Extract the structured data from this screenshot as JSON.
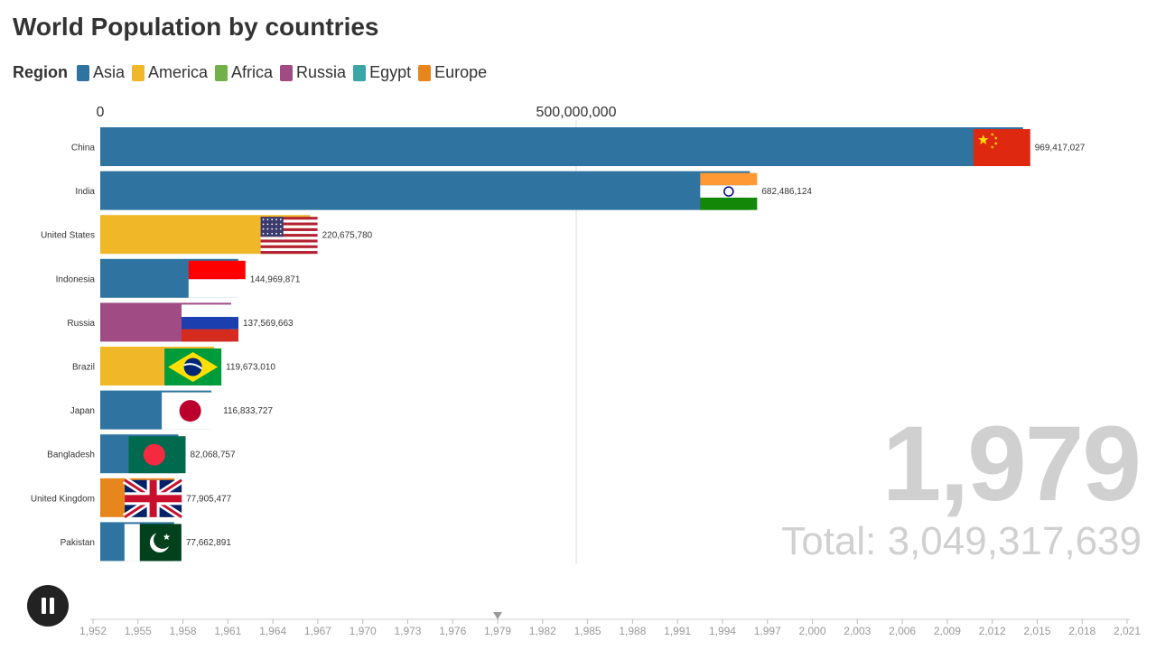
{
  "title": "World Population by countries",
  "legend": {
    "title": "Region",
    "items": [
      {
        "label": "Asia",
        "color": "#2f74a0"
      },
      {
        "label": "America",
        "color": "#f0b829"
      },
      {
        "label": "Africa",
        "color": "#71b148"
      },
      {
        "label": "Russia",
        "color": "#a14b84"
      },
      {
        "label": "Egypt",
        "color": "#3aa5a5"
      },
      {
        "label": "Europe",
        "color": "#e8861e"
      }
    ]
  },
  "overlay": {
    "year": "1,979",
    "total": "Total: 3,049,317,639"
  },
  "chart_data": {
    "type": "bar",
    "orientation": "horizontal",
    "xlim": [
      0,
      1000000000
    ],
    "x_ticks": [
      0,
      500000000
    ],
    "x_tick_labels": [
      "0",
      "500,000,000"
    ],
    "grid": true,
    "categories": [
      "China",
      "India",
      "United States",
      "Indonesia",
      "Russia",
      "Brazil",
      "Japan",
      "Bangladesh",
      "United Kingdom",
      "Pakistan"
    ],
    "values": [
      969417027,
      682486124,
      220675780,
      144969871,
      137569663,
      119673010,
      116833727,
      82068757,
      77905477,
      77662891
    ],
    "value_labels": [
      "969,417,027",
      "682,486,124",
      "220,675,780",
      "144,969,871",
      "137,569,663",
      "119,673,010",
      "116,833,727",
      "82,068,757",
      "77,905,477",
      "77,662,891"
    ],
    "regions": [
      "Asia",
      "Asia",
      "America",
      "Asia",
      "Russia",
      "America",
      "Asia",
      "Asia",
      "Europe",
      "Asia"
    ],
    "flags": [
      "china-flag",
      "india-flag",
      "usa-flag",
      "indonesia-flag",
      "russia-flag",
      "brazil-flag",
      "japan-flag",
      "bangladesh-flag",
      "uk-flag",
      "pakistan-flag"
    ]
  },
  "timeline": {
    "years": [
      "1,952",
      "1,955",
      "1,958",
      "1,961",
      "1,964",
      "1,967",
      "1,970",
      "1,973",
      "1,976",
      "1,979",
      "1,982",
      "1,985",
      "1,988",
      "1,991",
      "1,994",
      "1,997",
      "2,000",
      "2,003",
      "2,006",
      "2,009",
      "2,012",
      "2,015",
      "2,018",
      "2,021"
    ],
    "current_index": 9
  }
}
